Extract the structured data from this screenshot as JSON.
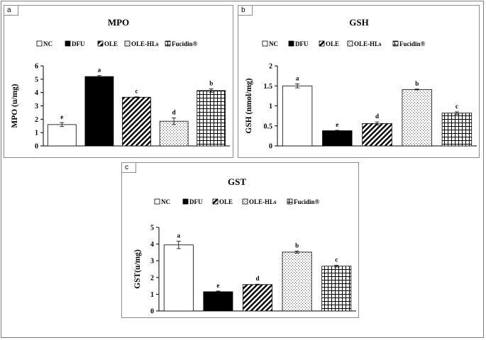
{
  "legend_labels": [
    "NC",
    "DFU",
    "OLE",
    "OLE-HLs",
    "Fucidin®"
  ],
  "panels": {
    "a": {
      "tag": "a"
    },
    "b": {
      "tag": "b"
    },
    "c": {
      "tag": "c"
    }
  },
  "chart_data": [
    {
      "id": "a",
      "type": "bar",
      "title": "MPO",
      "xlabel": "",
      "ylabel": "MPO  (u/mg)",
      "ylim": [
        0,
        6
      ],
      "yticks": [
        "0",
        "1",
        "2",
        "3",
        "4",
        "5",
        "6"
      ],
      "categories": [
        "NC",
        "DFU",
        "OLE",
        "OLE-HLs",
        "Fucidin®"
      ],
      "values": [
        1.6,
        5.2,
        3.65,
        1.85,
        4.15
      ],
      "errors": [
        0.15,
        0.07,
        0.03,
        0.25,
        0.13
      ],
      "letters": [
        "e",
        "a",
        "c",
        "d",
        "b"
      ]
    },
    {
      "id": "b",
      "type": "bar",
      "title": "GSH",
      "xlabel": "",
      "ylabel": "GSH  (nmol/mg)",
      "ylim": [
        0,
        2
      ],
      "yticks": [
        "0",
        "0.5",
        "1",
        "1.5",
        "2"
      ],
      "categories": [
        "NC",
        "DFU",
        "OLE",
        "OLE-HLs",
        "Fucidin®"
      ],
      "values": [
        1.5,
        0.38,
        0.56,
        1.41,
        0.82
      ],
      "errors": [
        0.05,
        0.01,
        0.04,
        0.01,
        0.03
      ],
      "letters": [
        "a",
        "e",
        "d",
        "b",
        "c"
      ]
    },
    {
      "id": "c",
      "type": "bar",
      "title": "GST",
      "xlabel": "",
      "ylabel": "GST(u/mg)",
      "ylim": [
        0,
        5
      ],
      "yticks": [
        "0",
        "1",
        "2",
        "3",
        "4",
        "5"
      ],
      "categories": [
        "NC",
        "DFU",
        "OLE",
        "OLE-HLs",
        "Fucidin®"
      ],
      "values": [
        3.95,
        1.15,
        1.58,
        3.52,
        2.68
      ],
      "errors": [
        0.22,
        0.04,
        0.02,
        0.06,
        0.05
      ],
      "letters": [
        "a",
        "e",
        "d",
        "b",
        "c"
      ]
    }
  ]
}
